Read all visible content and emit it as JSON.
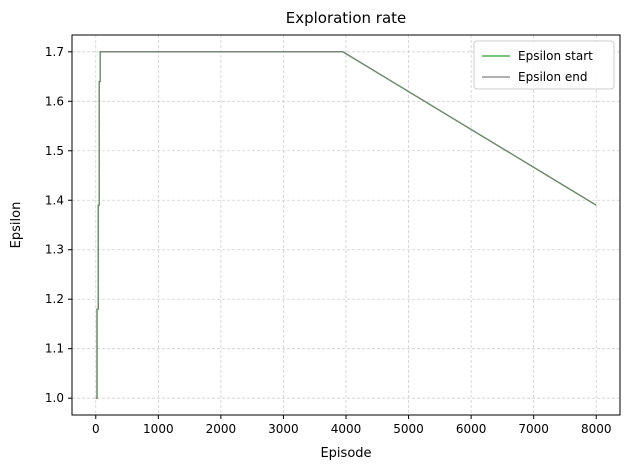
{
  "chart_data": {
    "type": "line",
    "title": "Exploration rate",
    "xlabel": "Episode",
    "ylabel": "Epsilon",
    "xlim": [
      -380,
      8380
    ],
    "ylim": [
      0.966,
      1.734
    ],
    "xticks": [
      0,
      1000,
      2000,
      3000,
      4000,
      5000,
      6000,
      7000,
      8000
    ],
    "xtick_labels": [
      "0",
      "1000",
      "2000",
      "3000",
      "4000",
      "5000",
      "6000",
      "7000",
      "8000"
    ],
    "yticks": [
      1.0,
      1.1,
      1.2,
      1.3,
      1.4,
      1.5,
      1.6,
      1.7
    ],
    "ytick_labels": [
      "1.0",
      "1.1",
      "1.2",
      "1.3",
      "1.4",
      "1.5",
      "1.6",
      "1.7"
    ],
    "grid": true,
    "legend_position": "top-right",
    "series": [
      {
        "name": "Epsilon start",
        "color": "#2ca02c",
        "x": [
          0,
          20,
          20,
          40,
          40,
          55,
          55,
          70,
          70,
          3950,
          8000
        ],
        "y": [
          1.0,
          1.0,
          1.18,
          1.18,
          1.39,
          1.39,
          1.64,
          1.64,
          1.7,
          1.7,
          1.39
        ]
      },
      {
        "name": "Epsilon end",
        "color": "#808080",
        "x": [
          0,
          20,
          20,
          40,
          40,
          55,
          55,
          70,
          70,
          3950,
          8000
        ],
        "y": [
          1.0,
          1.0,
          1.18,
          1.18,
          1.39,
          1.39,
          1.64,
          1.64,
          1.7,
          1.7,
          1.39
        ]
      }
    ]
  }
}
